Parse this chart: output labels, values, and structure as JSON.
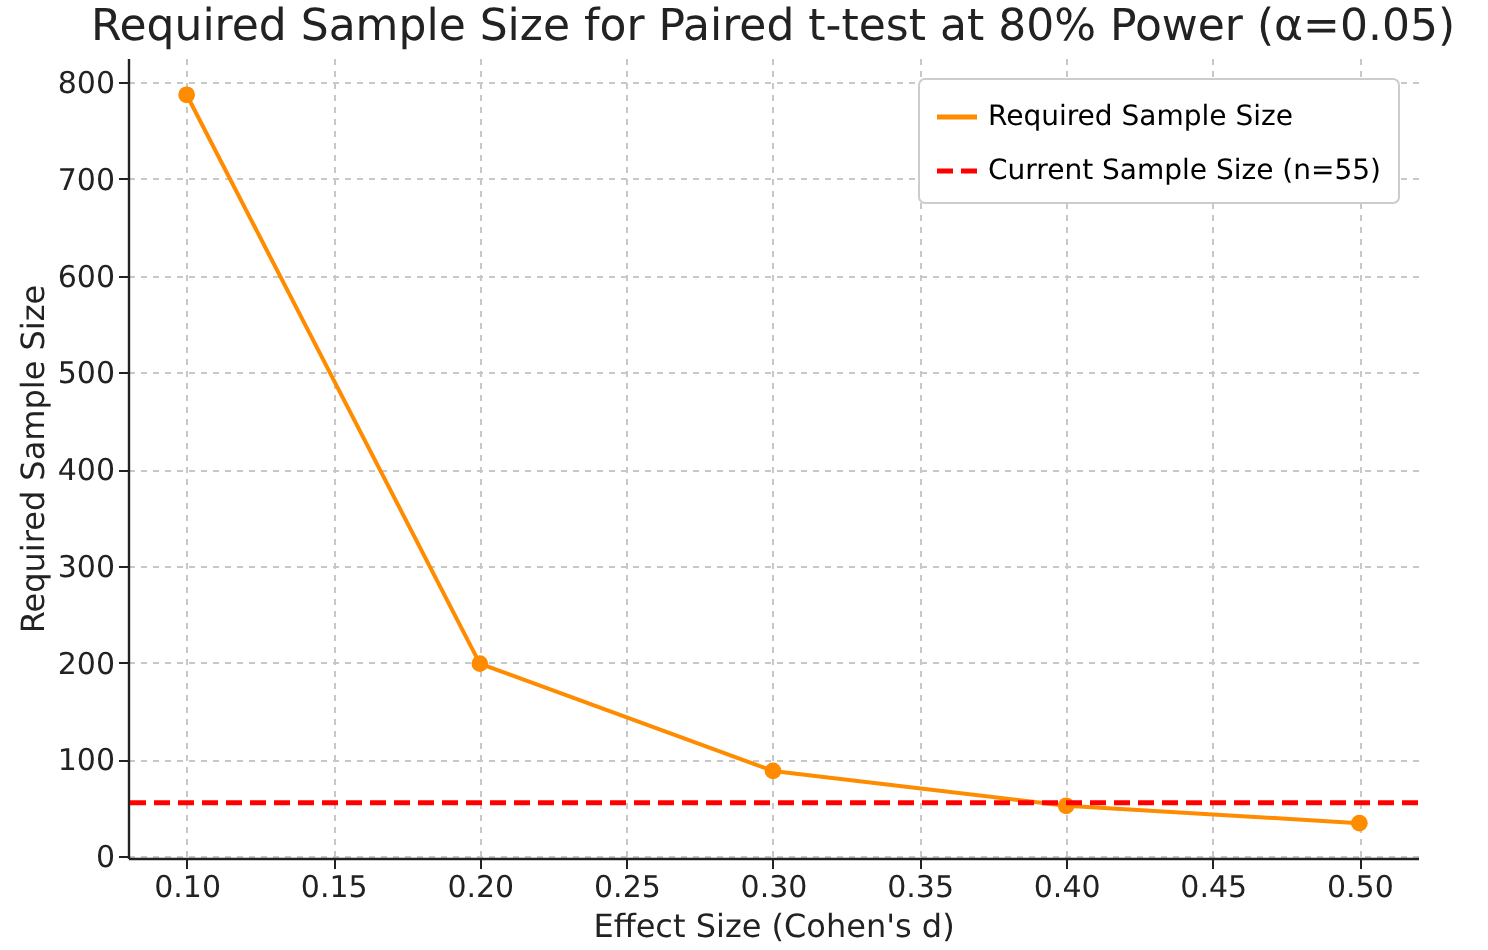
{
  "chart_data": {
    "type": "line",
    "title": "Required Sample Size for Paired t-test at 80% Power (α=0.05)",
    "xlabel": "Effect Size (Cohen's d)",
    "ylabel": "Required Sample Size",
    "x": [
      0.1,
      0.2,
      0.3,
      0.4,
      0.5
    ],
    "series": [
      {
        "name": "Required Sample Size",
        "color": "#ff8c00",
        "values": [
          787,
          199,
          88,
          52,
          34
        ]
      }
    ],
    "ref_lines": [
      {
        "axis": "y",
        "value": 55,
        "label": "Current Sample Size (n=55)",
        "color": "#ff0000",
        "line_style": "dashed"
      }
    ],
    "xlim": [
      0.08,
      0.52
    ],
    "xticks": [
      {
        "value": 0.1,
        "label": "0.10"
      },
      {
        "value": 0.15,
        "label": "0.15"
      },
      {
        "value": 0.2,
        "label": "0.20"
      },
      {
        "value": 0.25,
        "label": "0.25"
      },
      {
        "value": 0.3,
        "label": "0.30"
      },
      {
        "value": 0.35,
        "label": "0.35"
      },
      {
        "value": 0.4,
        "label": "0.40"
      },
      {
        "value": 0.45,
        "label": "0.45"
      },
      {
        "value": 0.5,
        "label": "0.50"
      }
    ],
    "ylim": [
      -2,
      825
    ],
    "yticks": [
      0,
      100,
      200,
      300,
      400,
      500,
      600,
      700,
      800
    ],
    "grid": true,
    "legend": "top right",
    "marker": "circle",
    "line_style": "solid"
  }
}
